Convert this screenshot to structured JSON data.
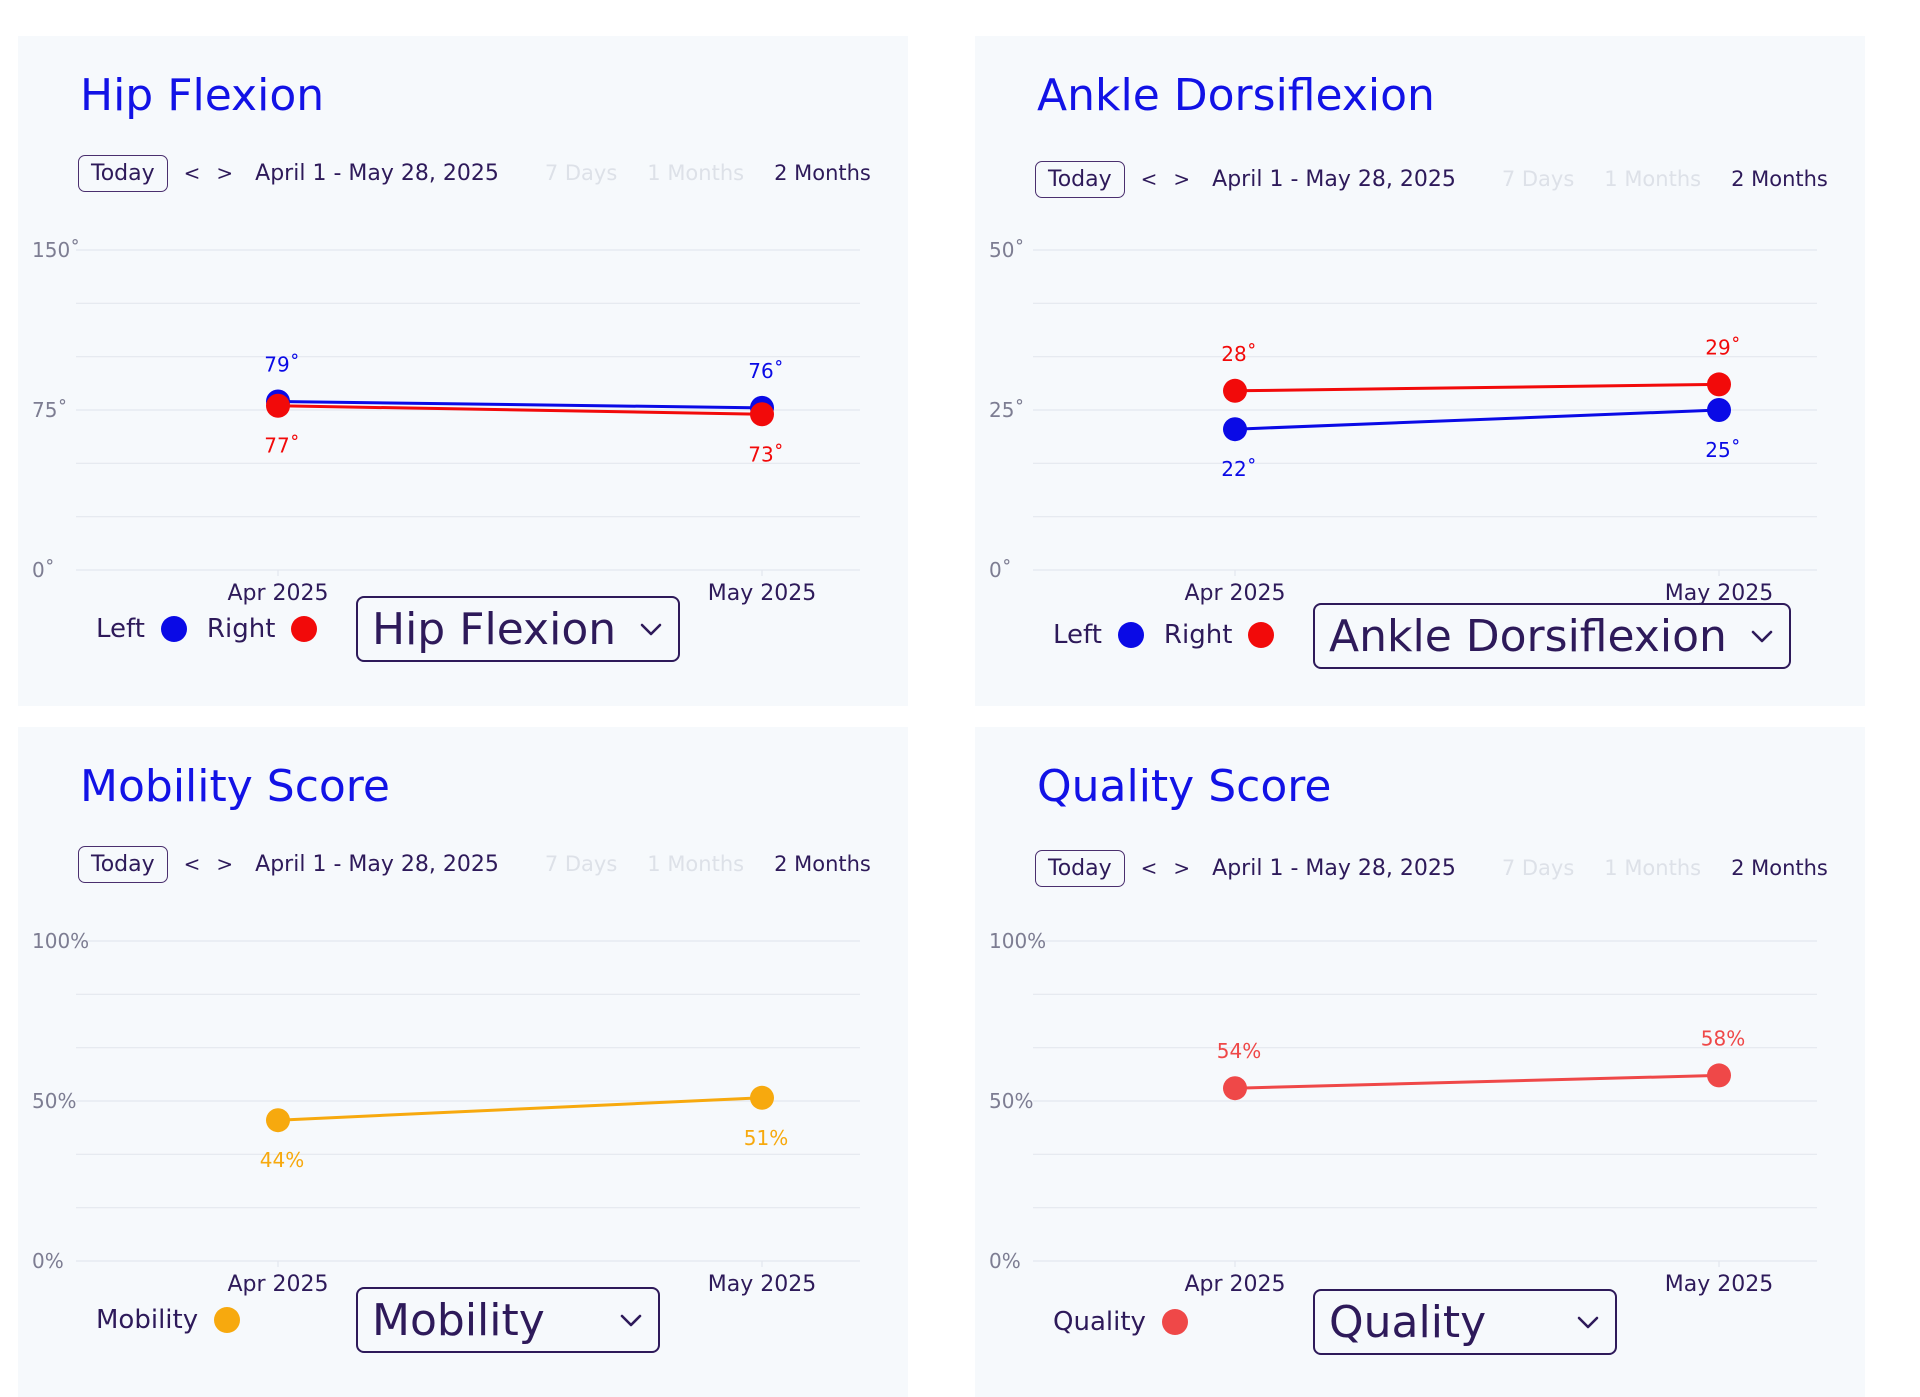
{
  "toolbar": {
    "today": "Today",
    "prev": "<",
    "next": ">",
    "date_range": "April 1 - May 28, 2025",
    "ranges": [
      "7 Days",
      "1 Months",
      "2 Months"
    ]
  },
  "colors": {
    "left": "#0a0ae6",
    "right": "#f20a0a",
    "mobility": "#f7a90e",
    "quality": "#ef4848",
    "title": "#1212e6"
  },
  "panels": [
    {
      "title": "Hip Flexion",
      "selector_label": "Hip Flexion",
      "legend": [
        "Left",
        "Right"
      ]
    },
    {
      "title": "Ankle Dorsiflexion",
      "selector_label": "Ankle Dorsiflexion",
      "legend": [
        "Left",
        "Right"
      ]
    },
    {
      "title": "Mobility Score",
      "selector_label": "Mobility",
      "legend": [
        "Mobility"
      ]
    },
    {
      "title": "Quality Score",
      "selector_label": "Quality",
      "legend": [
        "Quality"
      ]
    }
  ],
  "chart_data": [
    {
      "type": "line",
      "title": "Hip Flexion",
      "categories": [
        "Apr 2025",
        "May 2025"
      ],
      "ylim": [
        0,
        150
      ],
      "y_ticks": [
        "150˚",
        "75˚",
        "0˚"
      ],
      "unit": "˚",
      "grid": true,
      "legend_position": "bottom-left",
      "series": [
        {
          "name": "Left",
          "values": [
            79,
            76
          ],
          "color": "#0a0ae6",
          "label_pos": [
            "above",
            "above"
          ]
        },
        {
          "name": "Right",
          "values": [
            77,
            73
          ],
          "color": "#f20a0a",
          "label_pos": [
            "below",
            "below"
          ]
        }
      ]
    },
    {
      "type": "line",
      "title": "Ankle Dorsiflexion",
      "categories": [
        "Apr 2025",
        "May 2025"
      ],
      "ylim": [
        0,
        50
      ],
      "y_ticks": [
        "50˚",
        "25˚",
        "0˚"
      ],
      "unit": "˚",
      "grid": true,
      "legend_position": "bottom-left",
      "series": [
        {
          "name": "Left",
          "values": [
            22,
            25
          ],
          "color": "#0a0ae6",
          "label_pos": [
            "below",
            "below"
          ]
        },
        {
          "name": "Right",
          "values": [
            28,
            29
          ],
          "color": "#f20a0a",
          "label_pos": [
            "above",
            "above"
          ]
        }
      ]
    },
    {
      "type": "line",
      "title": "Mobility Score",
      "categories": [
        "Apr 2025",
        "May 2025"
      ],
      "ylim": [
        0,
        100
      ],
      "y_ticks": [
        "100%",
        "50%",
        "0%"
      ],
      "unit": "%",
      "grid": true,
      "legend_position": "bottom-left",
      "series": [
        {
          "name": "Mobility",
          "values": [
            44,
            51
          ],
          "color": "#f7a90e",
          "label_pos": [
            "below",
            "below"
          ]
        }
      ]
    },
    {
      "type": "line",
      "title": "Quality Score",
      "categories": [
        "Apr 2025",
        "May 2025"
      ],
      "ylim": [
        0,
        100
      ],
      "y_ticks": [
        "100%",
        "50%",
        "0%"
      ],
      "unit": "%",
      "grid": true,
      "legend_position": "bottom-left",
      "series": [
        {
          "name": "Quality",
          "values": [
            54,
            58
          ],
          "color": "#ef4848",
          "label_pos": [
            "above",
            "above"
          ]
        }
      ]
    }
  ]
}
